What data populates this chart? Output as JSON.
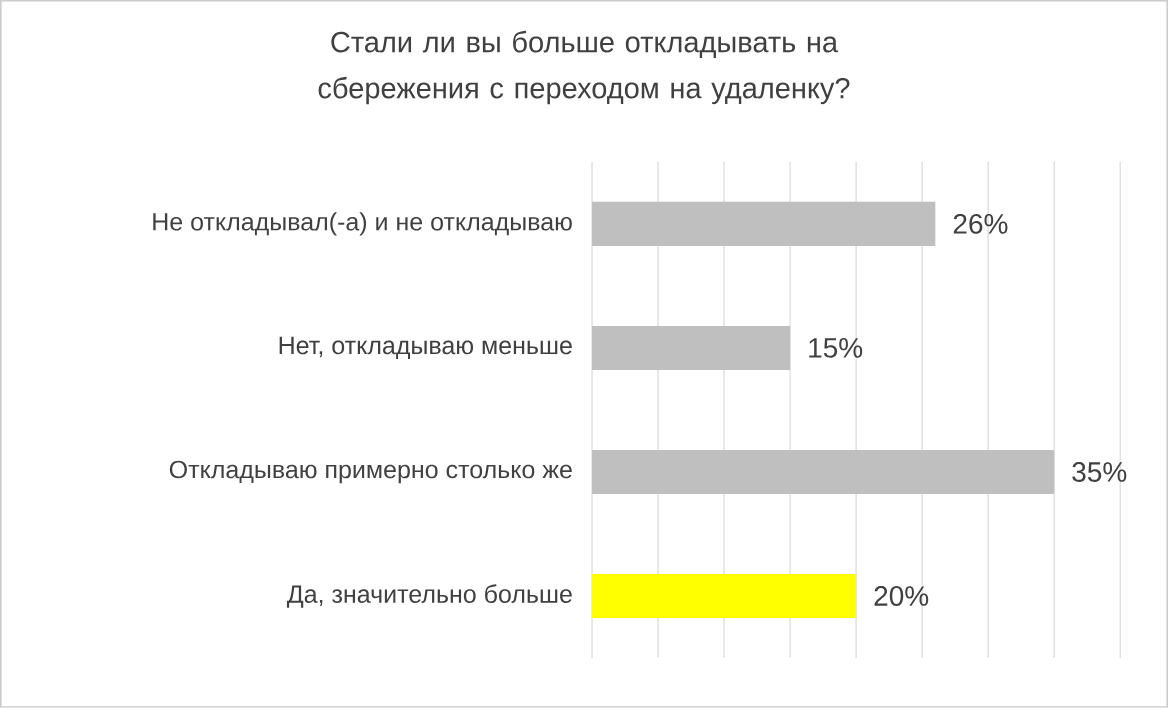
{
  "chart_data": {
    "type": "bar",
    "orientation": "horizontal",
    "title": "Стали ли вы больше откладывать на сбережения с переходом на удаленку?",
    "categories": [
      "Не откладывал(-а) и не откладываю",
      "Нет, откладываю меньше",
      "Откладываю примерно столько же",
      "Да, значительно больше"
    ],
    "values": [
      26,
      15,
      35,
      20
    ],
    "colors": [
      "#bfbfbf",
      "#bfbfbf",
      "#bfbfbf",
      "#ffff00"
    ],
    "value_labels": [
      "26%",
      "15%",
      "35%",
      "20%"
    ],
    "xlim": [
      0,
      40
    ],
    "xticks": [
      {
        "value": 0,
        "label": null
      },
      {
        "value": 5,
        "label": null
      },
      {
        "value": 10,
        "label": null
      },
      {
        "value": 15,
        "label": null
      },
      {
        "value": 20,
        "label": null
      },
      {
        "value": 25,
        "label": null
      },
      {
        "value": 30,
        "label": null
      },
      {
        "value": 35,
        "label": null
      },
      {
        "value": 40,
        "label": null
      }
    ],
    "tick_labels": "y",
    "grid": "x"
  }
}
